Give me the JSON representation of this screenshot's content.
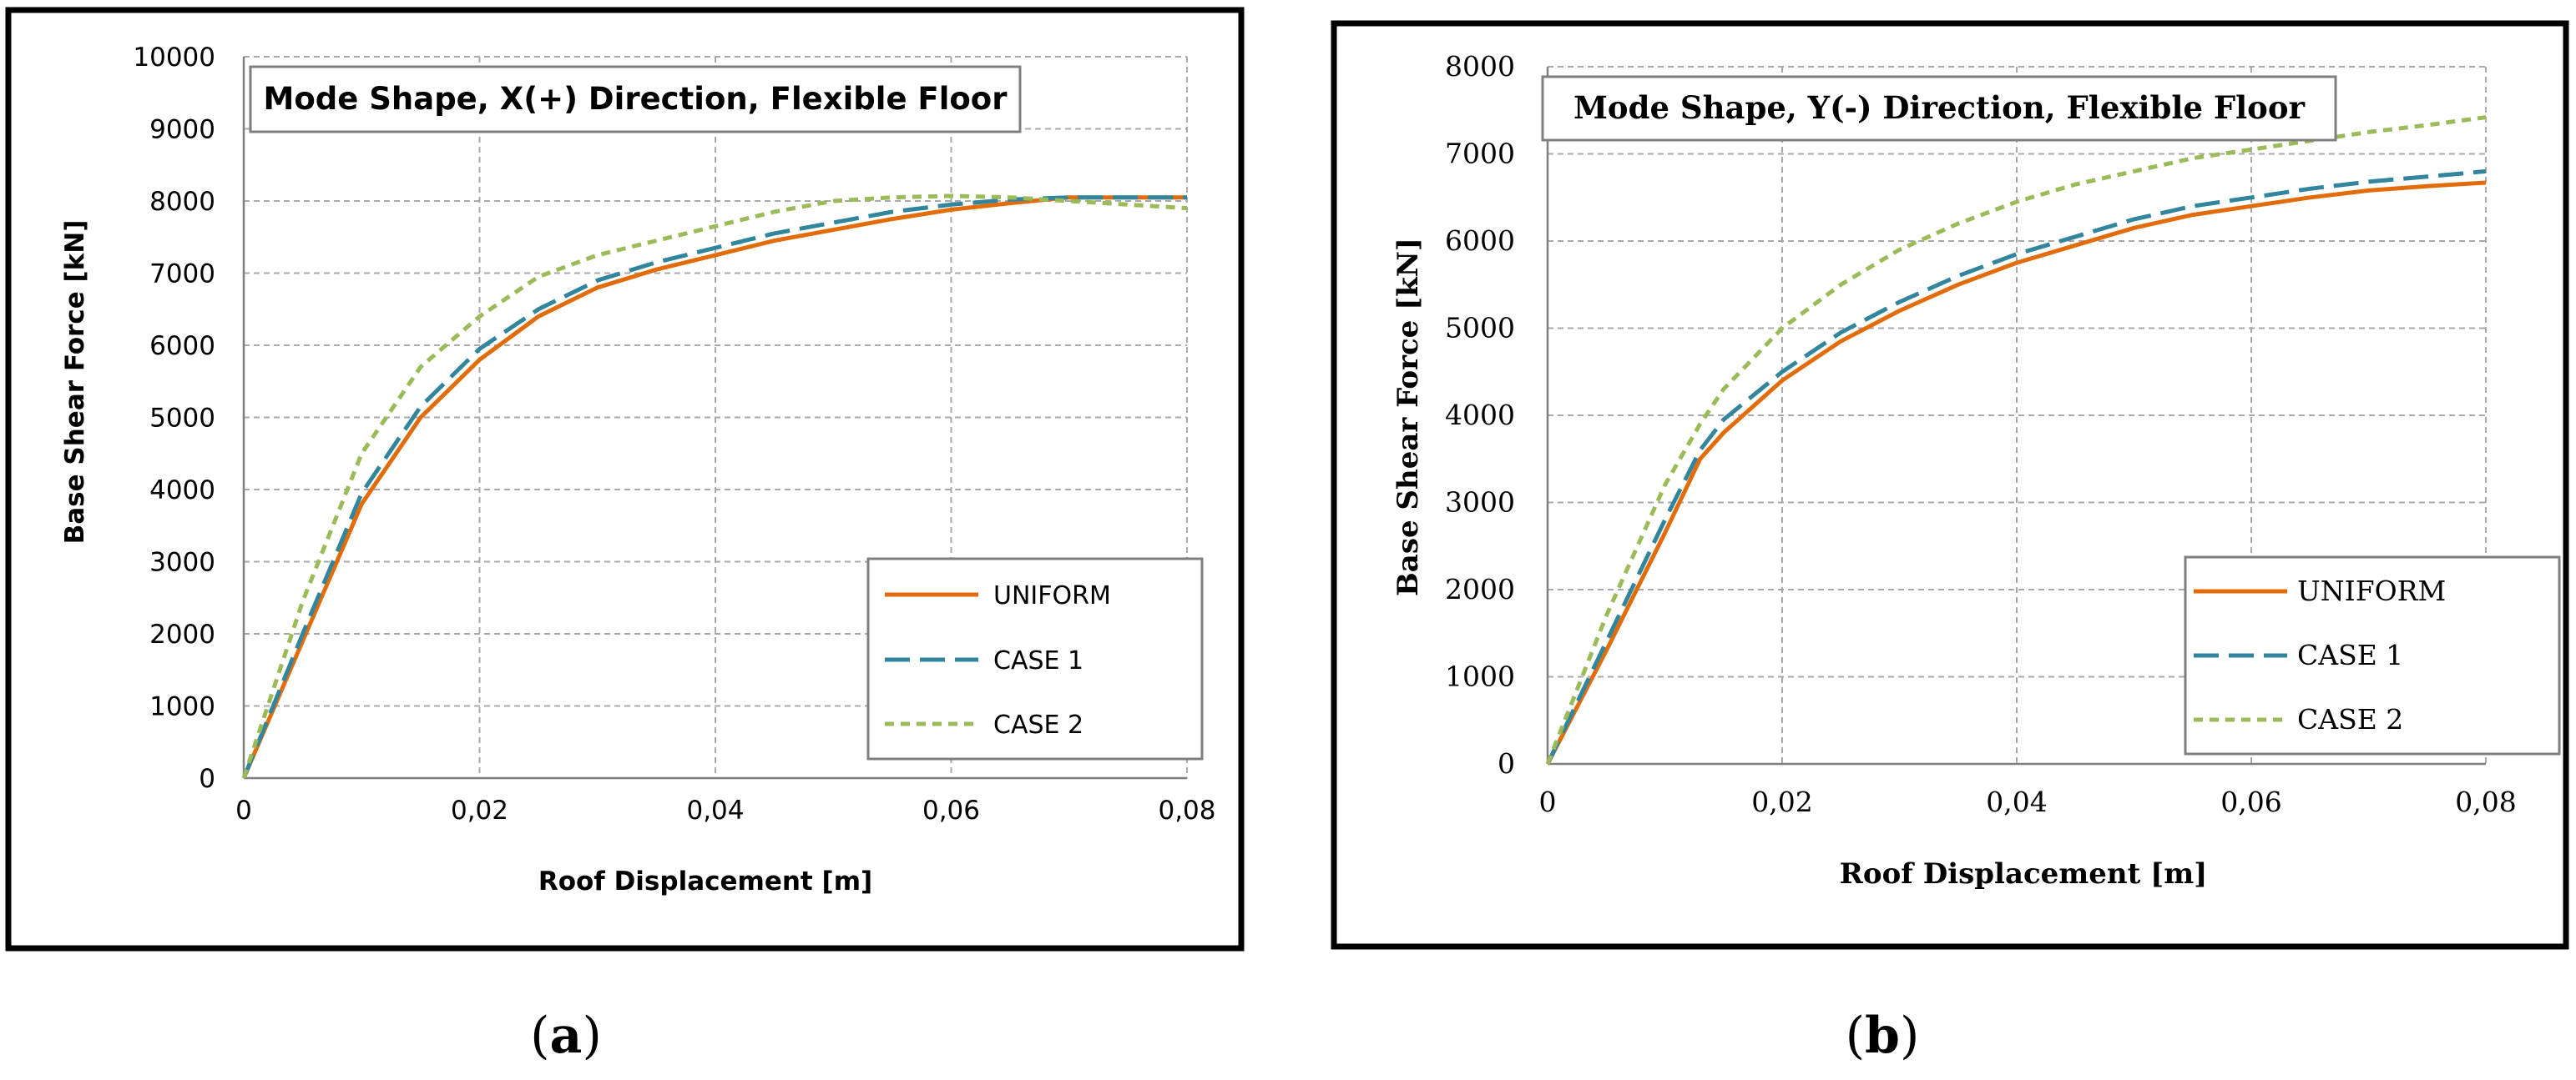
{
  "chart_data": [
    {
      "type": "line",
      "panel_caption": "(a)",
      "caption_letter": "a",
      "title": "Mode Shape, X(+) Direction, Flexible Floor",
      "xlabel": "Roof Displacement [m]",
      "ylabel": "Base Shear Force [kN]",
      "xlim": [
        0,
        0.08
      ],
      "ylim": [
        0,
        10000
      ],
      "xticks": [
        0,
        0.02,
        0.04,
        0.06,
        0.08
      ],
      "xtick_labels": [
        "0",
        "0,02",
        "0,04",
        "0,06",
        "0,08"
      ],
      "yticks": [
        0,
        1000,
        2000,
        3000,
        4000,
        5000,
        6000,
        7000,
        8000,
        9000,
        10000
      ],
      "ytick_labels": [
        "0",
        "1000",
        "2000",
        "3000",
        "4000",
        "5000",
        "6000",
        "7000",
        "8000",
        "9000",
        "10000"
      ],
      "grid": true,
      "legend_position": "bottom-right",
      "series": [
        {
          "name": "UNIFORM",
          "color": "#e36c0a",
          "style": "solid",
          "x": [
            0,
            0.005,
            0.01,
            0.015,
            0.02,
            0.025,
            0.03,
            0.035,
            0.04,
            0.045,
            0.05,
            0.055,
            0.06,
            0.065,
            0.07,
            0.075,
            0.08
          ],
          "y": [
            0,
            1900,
            3800,
            5000,
            5800,
            6400,
            6800,
            7050,
            7250,
            7450,
            7600,
            7750,
            7880,
            7970,
            8050,
            8050,
            8050
          ]
        },
        {
          "name": "CASE 1",
          "color": "#31859c",
          "style": "dashed",
          "x": [
            0,
            0.005,
            0.01,
            0.015,
            0.02,
            0.025,
            0.03,
            0.035,
            0.04,
            0.045,
            0.05,
            0.055,
            0.06,
            0.065,
            0.07,
            0.075,
            0.08
          ],
          "y": [
            0,
            2000,
            3950,
            5150,
            5950,
            6500,
            6900,
            7150,
            7350,
            7550,
            7700,
            7850,
            7950,
            8020,
            8050,
            8050,
            8050
          ]
        },
        {
          "name": "CASE 2",
          "color": "#9bbb59",
          "style": "dotted",
          "x": [
            0,
            0.005,
            0.01,
            0.015,
            0.02,
            0.025,
            0.03,
            0.035,
            0.04,
            0.045,
            0.05,
            0.055,
            0.06,
            0.065,
            0.07,
            0.075,
            0.08
          ],
          "y": [
            0,
            2450,
            4500,
            5700,
            6400,
            6950,
            7250,
            7450,
            7650,
            7850,
            8000,
            8050,
            8070,
            8050,
            8000,
            7950,
            7900
          ]
        }
      ]
    },
    {
      "type": "line",
      "panel_caption": "(b)",
      "caption_letter": "b",
      "title": "Mode Shape, Y(-) Direction, Flexible Floor",
      "xlabel": "Roof Displacement [m]",
      "ylabel": "Base Shear Force [kN]",
      "xlim": [
        0,
        0.08
      ],
      "ylim": [
        0,
        8000
      ],
      "xticks": [
        0,
        0.02,
        0.04,
        0.06,
        0.08
      ],
      "xtick_labels": [
        "0",
        "0,02",
        "0,04",
        "0,06",
        "0,08"
      ],
      "yticks": [
        0,
        1000,
        2000,
        3000,
        4000,
        5000,
        6000,
        7000,
        8000
      ],
      "ytick_labels": [
        "0",
        "1000",
        "2000",
        "3000",
        "4000",
        "5000",
        "6000",
        "7000",
        "8000"
      ],
      "grid": true,
      "legend_position": "bottom-right",
      "series": [
        {
          "name": "UNIFORM",
          "color": "#e36c0a",
          "style": "solid",
          "x": [
            0,
            0.005,
            0.01,
            0.013,
            0.015,
            0.02,
            0.025,
            0.03,
            0.035,
            0.04,
            0.045,
            0.05,
            0.055,
            0.06,
            0.065,
            0.07,
            0.075,
            0.08
          ],
          "y": [
            0,
            1300,
            2650,
            3500,
            3800,
            4400,
            4850,
            5200,
            5500,
            5750,
            5950,
            6150,
            6300,
            6400,
            6500,
            6580,
            6630,
            6670
          ]
        },
        {
          "name": "CASE 1",
          "color": "#31859c",
          "style": "dashed",
          "x": [
            0,
            0.005,
            0.01,
            0.013,
            0.015,
            0.02,
            0.025,
            0.03,
            0.035,
            0.04,
            0.045,
            0.05,
            0.055,
            0.06,
            0.065,
            0.07,
            0.075,
            0.08
          ],
          "y": [
            0,
            1400,
            2800,
            3600,
            3950,
            4500,
            4950,
            5300,
            5600,
            5850,
            6050,
            6250,
            6400,
            6500,
            6600,
            6680,
            6740,
            6800
          ]
        },
        {
          "name": "CASE 2",
          "color": "#9bbb59",
          "style": "dotted",
          "x": [
            0,
            0.005,
            0.01,
            0.013,
            0.015,
            0.02,
            0.025,
            0.03,
            0.035,
            0.04,
            0.045,
            0.05,
            0.055,
            0.06,
            0.065,
            0.07,
            0.075,
            0.08
          ],
          "y": [
            0,
            1700,
            3200,
            3900,
            4300,
            5000,
            5500,
            5900,
            6200,
            6450,
            6650,
            6800,
            6950,
            7050,
            7150,
            7250,
            7330,
            7420
          ]
        }
      ]
    }
  ]
}
